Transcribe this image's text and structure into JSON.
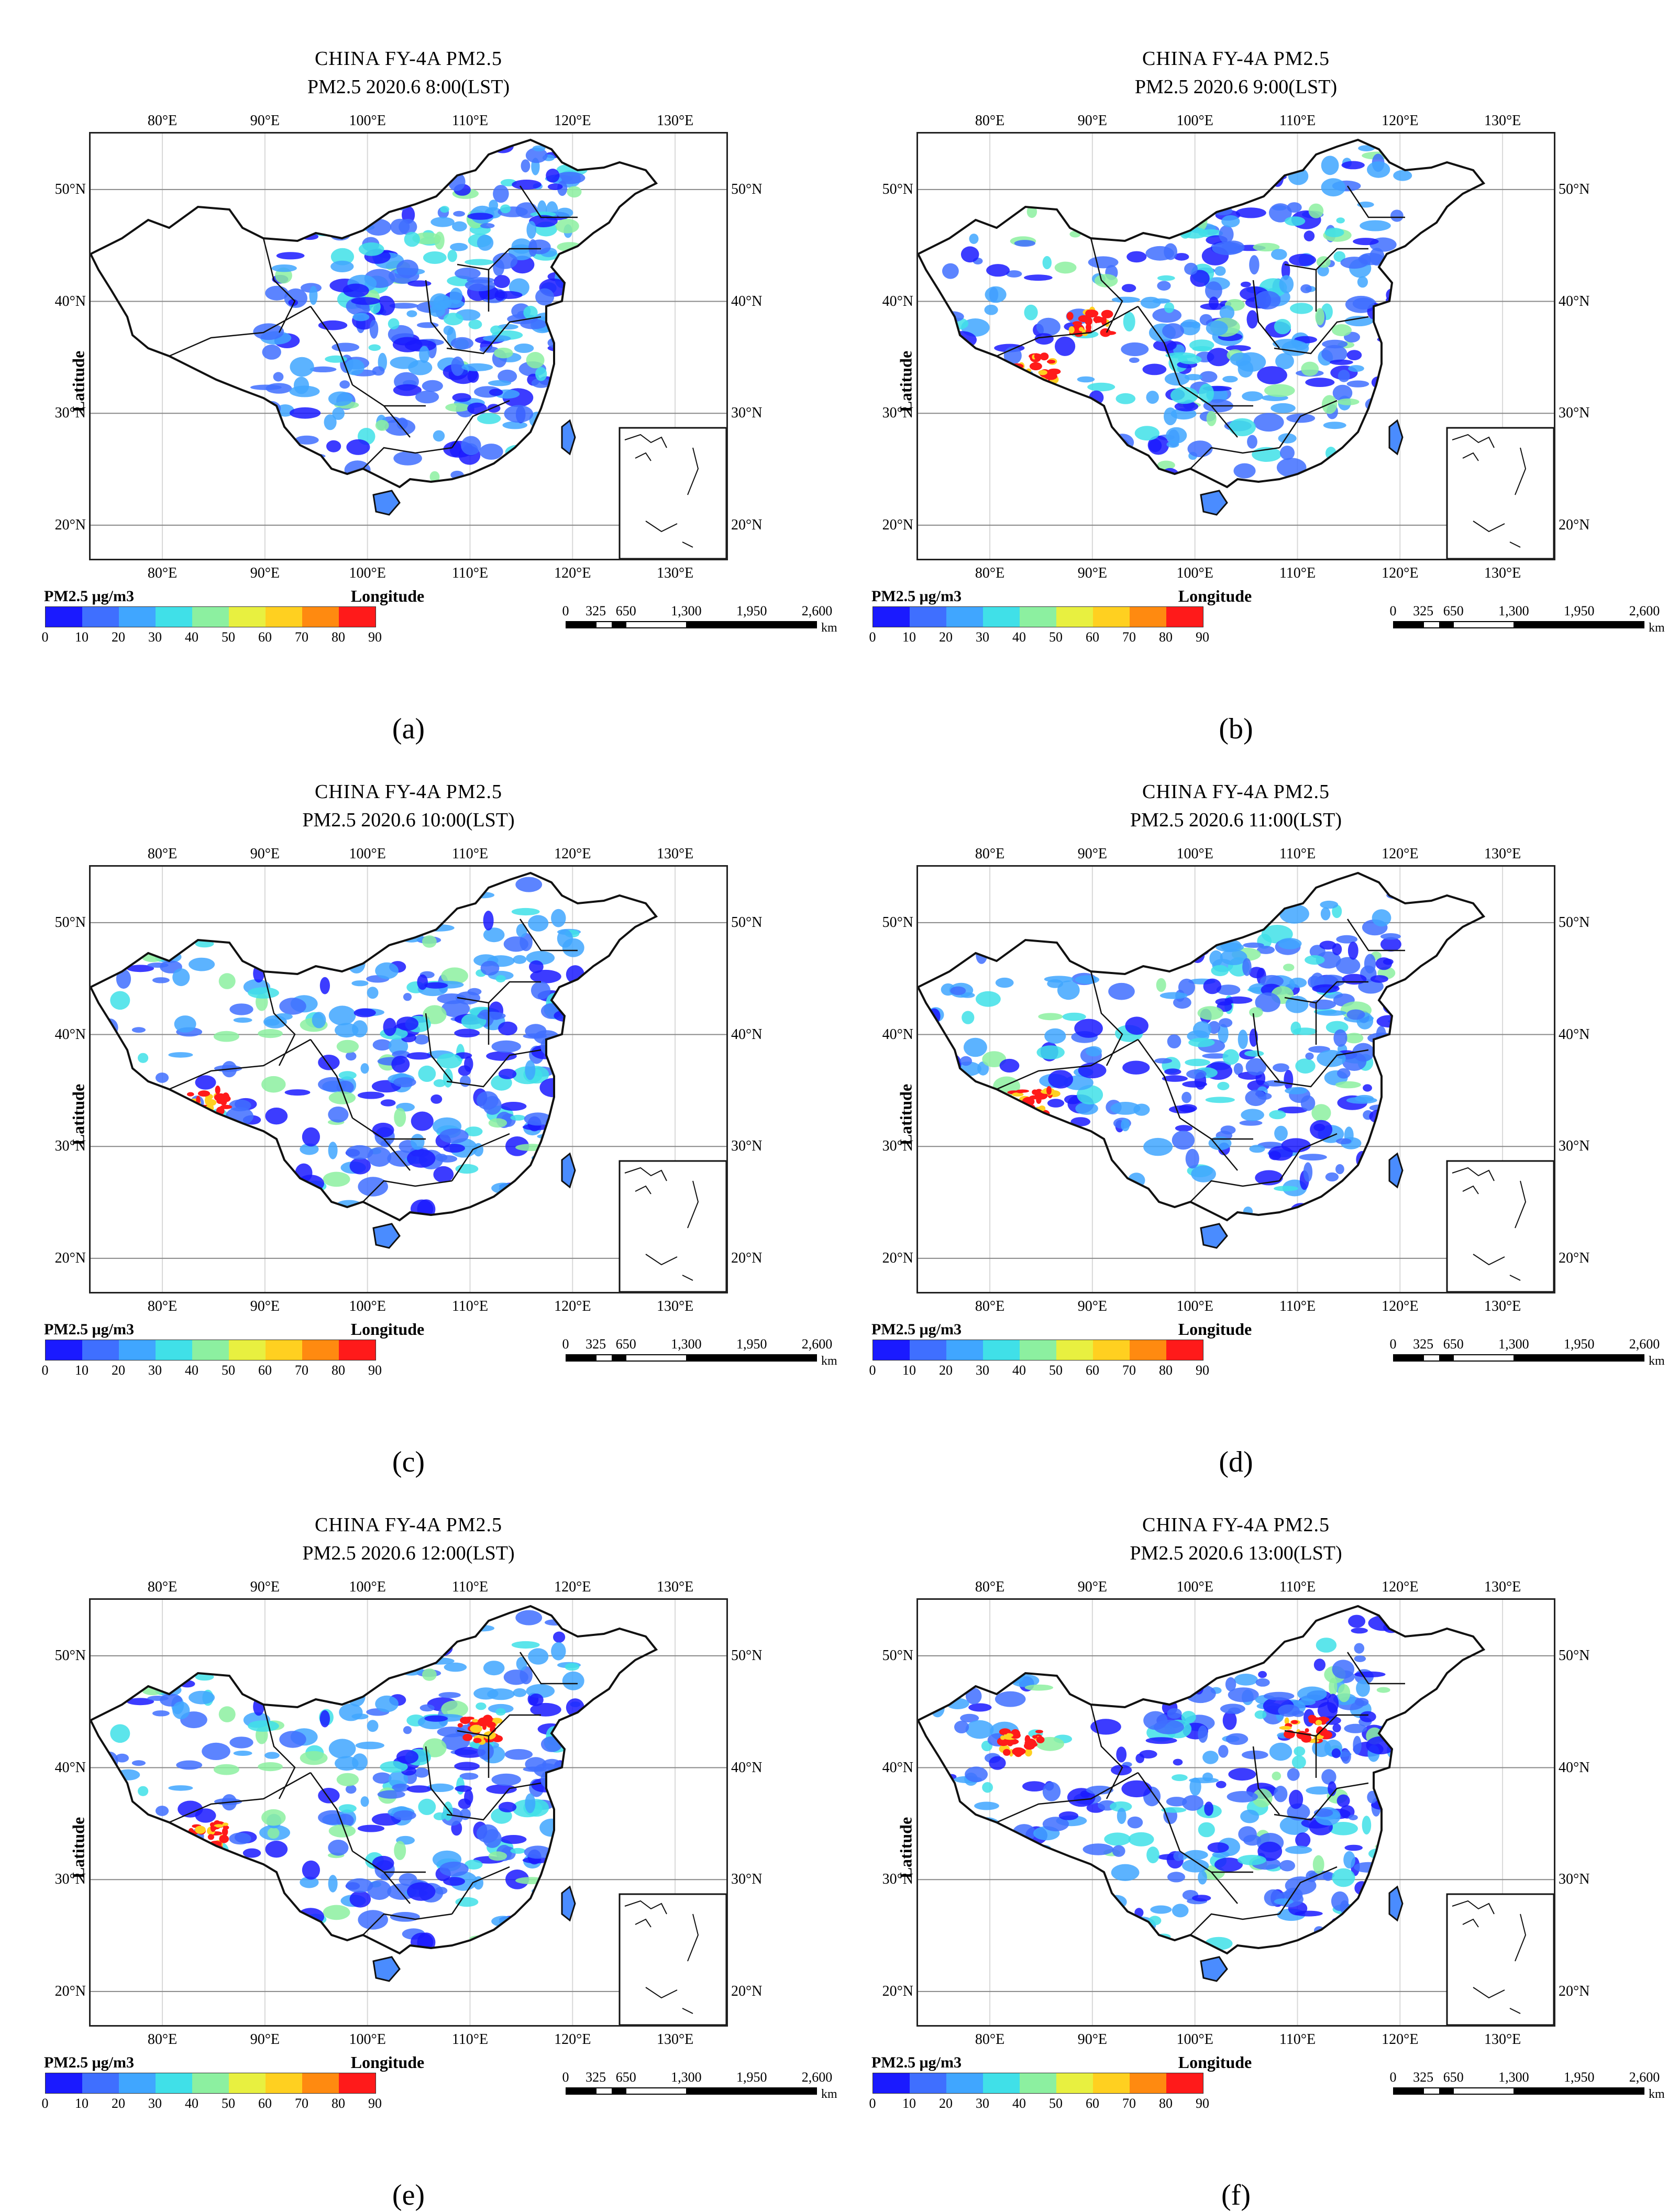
{
  "figure": {
    "panels": [
      {
        "id": "a",
        "label": "(a)",
        "title": "CHINA FY-4A  PM2.5",
        "subtitle": "PM2.5 2020.6 8:00(LST)",
        "high_pollution_regions": [],
        "coverage": "east"
      },
      {
        "id": "b",
        "label": "(b)",
        "title": "CHINA FY-4A  PM2.5",
        "subtitle": "PM2.5 2020.6 9:00(LST)",
        "high_pollution_regions": [
          "southern Tibet",
          "Qinghai"
        ],
        "coverage": "full"
      },
      {
        "id": "c",
        "label": "(c)",
        "title": "CHINA FY-4A  PM2.5",
        "subtitle": "PM2.5 2020.6 10:00(LST)",
        "high_pollution_regions": [
          "southern Tibet"
        ],
        "coverage": "full"
      },
      {
        "id": "d",
        "label": "(d)",
        "title": "CHINA FY-4A  PM2.5",
        "subtitle": "PM2.5 2020.6 11:00(LST)",
        "high_pollution_regions": [
          "southern Tibet"
        ],
        "coverage": "full"
      },
      {
        "id": "e",
        "label": "(e)",
        "title": "CHINA FY-4A  PM2.5",
        "subtitle": "PM2.5 2020.6 12:00(LST)",
        "high_pollution_regions": [
          "southern Tibet",
          "North China"
        ],
        "coverage": "full"
      },
      {
        "id": "f",
        "label": "(f)",
        "title": "CHINA FY-4A  PM2.5",
        "subtitle": "PM2.5 2020.6 13:00(LST)",
        "high_pollution_regions": [
          "Xinjiang",
          "North China"
        ],
        "coverage": "full"
      }
    ],
    "axes": {
      "xlabel": "Longitude",
      "ylabel": "Latitude",
      "top_ticks": [
        "80°E",
        "90°E",
        "100°E",
        "110°E",
        "120°E",
        "130°E"
      ],
      "bottom_ticks": [
        "80°E",
        "90°E",
        "100°E",
        "110°E",
        "120°E",
        "130°E"
      ],
      "lon_values": [
        80,
        90,
        100,
        110,
        120,
        130
      ],
      "lon_range": [
        73,
        135
      ],
      "lat_ticks_left": [
        "50°N",
        "40°N",
        "30°N",
        "20°N"
      ],
      "lat_ticks_right": [
        "50°N",
        "40°N",
        "30°N",
        "20°N"
      ],
      "lat_values": [
        50,
        40,
        30,
        20
      ],
      "lat_range": [
        17,
        55
      ]
    },
    "legend": {
      "title": "PM2.5 μg/m3",
      "ticks": [
        "0",
        "10",
        "20",
        "30",
        "40",
        "50",
        "60",
        "70",
        "80",
        "90"
      ],
      "colors": [
        "#1a1aff",
        "#3f6fff",
        "#40a6ff",
        "#40e0e8",
        "#8cf0a0",
        "#e8f040",
        "#ffd020",
        "#ff8a10",
        "#ff1a1a"
      ]
    },
    "scale_bar": {
      "labels": [
        "0",
        "325",
        "650",
        "1,300",
        "1,950",
        "2,600"
      ],
      "unit": "km"
    }
  }
}
